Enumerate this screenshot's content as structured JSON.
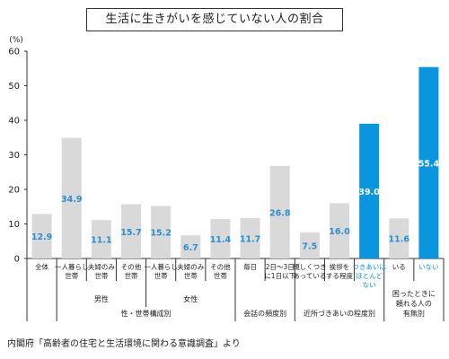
{
  "chart_data": {
    "type": "bar",
    "title": "生活に生きがいを感じていない人の割合",
    "ylabel": "(%)",
    "ylim": [
      0,
      60
    ],
    "yticks": [
      0,
      10,
      20,
      30,
      40,
      50,
      60
    ],
    "grid": false,
    "categories": [
      [
        "全体"
      ],
      [
        "一人暮らし",
        "世帯"
      ],
      [
        "夫婦のみ",
        "世帯"
      ],
      [
        "その他",
        "世帯"
      ],
      [
        "一人暮らし",
        "世帯"
      ],
      [
        "夫婦のみ",
        "世帯"
      ],
      [
        "その他",
        "世帯"
      ],
      [
        "毎日"
      ],
      [
        "2日〜3日",
        "に1日以下"
      ],
      [
        "親しくつき",
        "あっている"
      ],
      [
        "挨拶を",
        "する程度"
      ],
      [
        "つきあいは",
        "ほとんど",
        "ない"
      ],
      [
        "いる"
      ],
      [
        "いない"
      ]
    ],
    "values": [
      12.9,
      34.9,
      11.1,
      15.7,
      15.2,
      6.7,
      11.4,
      11.7,
      26.8,
      7.5,
      16.0,
      39.0,
      11.6,
      55.4
    ],
    "value_labels": [
      "12.9",
      "34.9",
      "11.1",
      "15.7",
      "15.2",
      "6.7",
      "11.4",
      "11.7",
      "26.8",
      "7.5",
      "16.0",
      "39.0",
      "11.6",
      "55.4"
    ],
    "highlight": [
      false,
      false,
      false,
      false,
      false,
      false,
      false,
      false,
      false,
      false,
      false,
      true,
      false,
      true
    ],
    "group_labels": {
      "male": "男性",
      "female": "女性",
      "household": "性・世帯構成別",
      "conversation": "会話の頻度別",
      "neighbor": "近所づきあいの程度別",
      "trouble_line1": "困ったときに",
      "trouble_line2": "頼れる人の",
      "trouble_line3": "有無別"
    },
    "colors": {
      "bar": "#d9d9d9",
      "highlight": "#0a96de",
      "value_label": "#2a8fd4",
      "value_label_highlight": "#ffffff"
    }
  },
  "source": "内閣府「高齢者の住宅と生活環境に関わる意識調査」より"
}
